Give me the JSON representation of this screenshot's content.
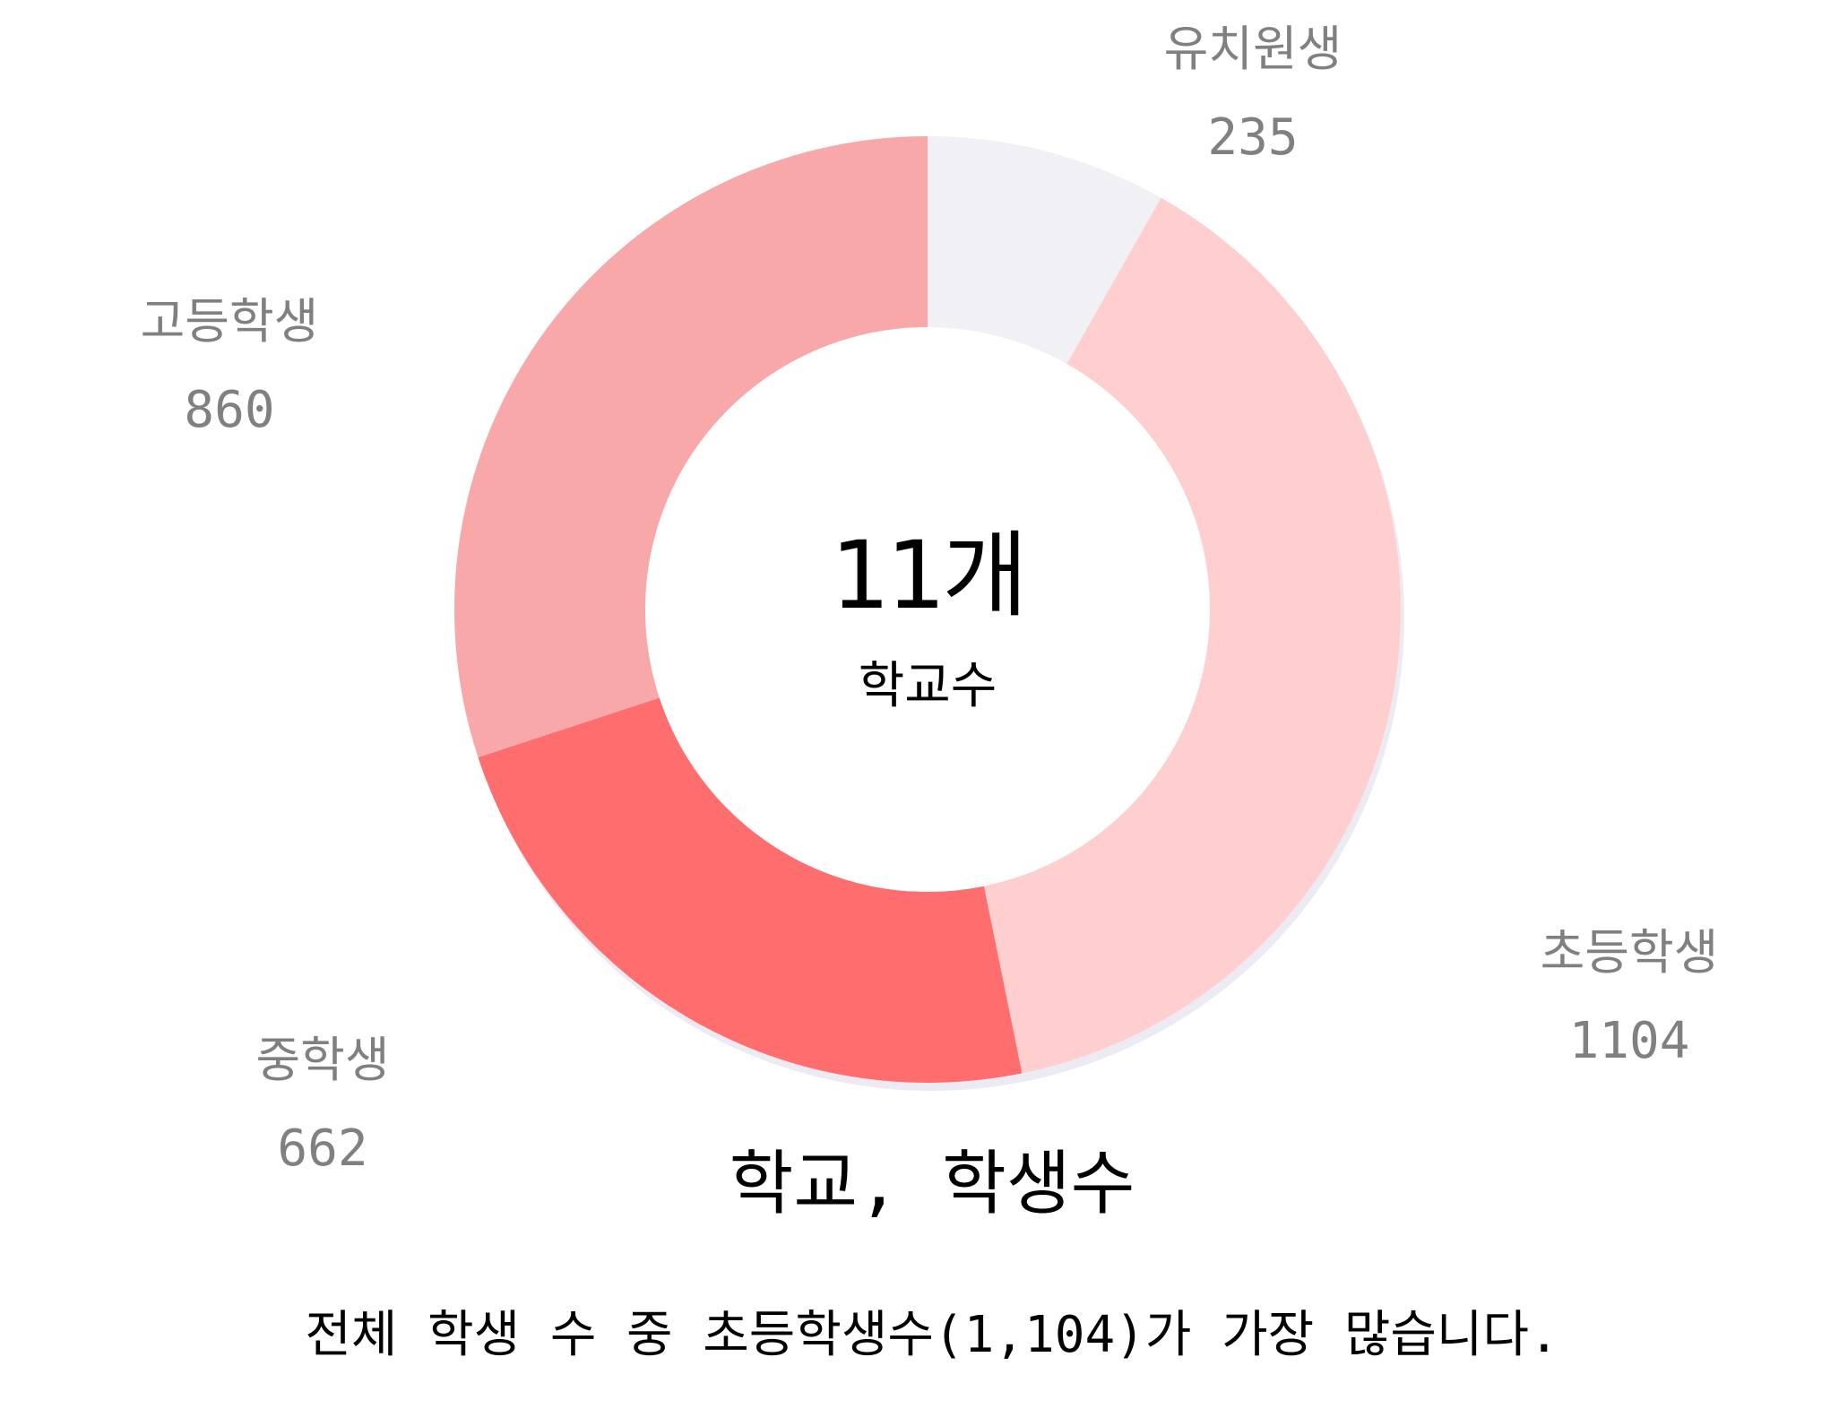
{
  "chart_data": {
    "type": "pie",
    "title": "학교, 학생수",
    "center_value": "11개",
    "center_label": "학교수",
    "slices": [
      {
        "label": "유치원생",
        "value": 235,
        "color": "#f0f0f5"
      },
      {
        "label": "초등학생",
        "value": 1104,
        "color": "#ffcece"
      },
      {
        "label": "중학생",
        "value": 662,
        "color": "#ff6e6e"
      },
      {
        "label": "고등학생",
        "value": 860,
        "color": "#f8a8a8"
      }
    ],
    "value_labels": [
      "235",
      "1104",
      "662",
      "860"
    ],
    "caption": "전체 학생 수 중 초등학생수(1,104)가 가장 많습니다."
  }
}
